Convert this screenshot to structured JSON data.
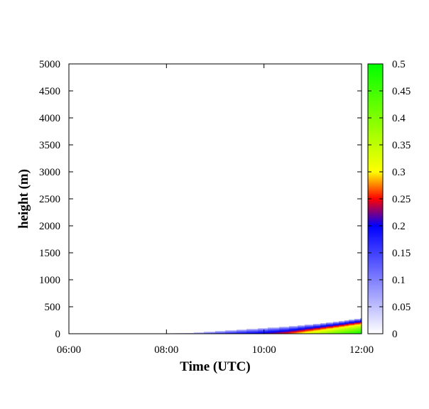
{
  "chart_data": {
    "type": "heatmap",
    "xlabel": "Time (UTC)",
    "ylabel": "height (m)",
    "x_ticks": [
      "06:00",
      "08:00",
      "10:00",
      "12:00"
    ],
    "xlim": [
      "06:00",
      "12:00"
    ],
    "y_ticks": [
      0,
      500,
      1000,
      1500,
      2000,
      2500,
      3000,
      3500,
      4000,
      4500,
      5000
    ],
    "ylim": [
      0,
      5000
    ],
    "colorbar": {
      "ticks": [
        "0",
        "0.05",
        "0.1",
        "0.15",
        "0.2",
        "0.25",
        "0.3",
        "0.35",
        "0.4",
        "0.45",
        "0.5"
      ],
      "range": [
        0,
        0.5
      ],
      "stops": [
        {
          "value": 0.0,
          "color": "#ffffff"
        },
        {
          "value": 0.2,
          "color": "#0000ff"
        },
        {
          "value": 0.25,
          "color": "#ff0000"
        },
        {
          "value": 0.3,
          "color": "#ffff00"
        },
        {
          "value": 0.5,
          "color": "#00ff00"
        }
      ]
    },
    "layer_profile": {
      "description": "",
      "points": [
        {
          "time": "08:00",
          "top_height": 0,
          "max_value": 0.0
        },
        {
          "time": "08:30",
          "top_height": 10,
          "max_value": 0.08
        },
        {
          "time": "09:00",
          "top_height": 40,
          "max_value": 0.15
        },
        {
          "time": "09:30",
          "top_height": 70,
          "max_value": 0.19
        },
        {
          "time": "10:00",
          "top_height": 100,
          "max_value": 0.22
        },
        {
          "time": "10:30",
          "top_height": 130,
          "max_value": 0.27
        },
        {
          "time": "11:00",
          "top_height": 170,
          "max_value": 0.35
        },
        {
          "time": "11:30",
          "top_height": 220,
          "max_value": 0.43
        },
        {
          "time": "12:00",
          "top_height": 280,
          "max_value": 0.5
        }
      ]
    }
  }
}
